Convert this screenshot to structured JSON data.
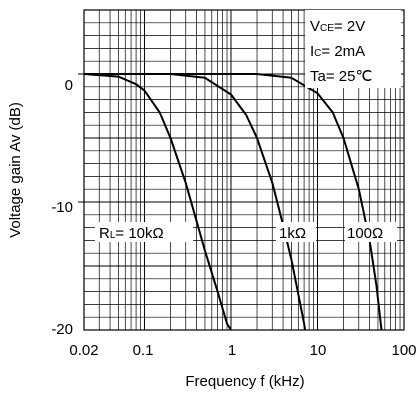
{
  "chart_data": {
    "type": "line",
    "xlabel": "Frequency f (kHz)",
    "ylabel": "Voltage gain Av (dB)",
    "x_scale": "log",
    "xlim": [
      0.02,
      100
    ],
    "ylim": [
      -20,
      5
    ],
    "x_ticks": [
      "0.02",
      "0.1",
      "1",
      "10",
      "100"
    ],
    "y_ticks": [
      "0",
      "-10",
      "-20"
    ],
    "grid": true,
    "series": [
      {
        "name": "RL= 10kΩ",
        "points": [
          [
            0.02,
            0
          ],
          [
            0.05,
            -0.2
          ],
          [
            0.08,
            -0.8
          ],
          [
            0.1,
            -1.3
          ],
          [
            0.15,
            -3.0
          ],
          [
            0.2,
            -5.0
          ],
          [
            0.3,
            -8.5
          ],
          [
            0.4,
            -11.5
          ],
          [
            0.5,
            -13.8
          ],
          [
            0.7,
            -17.0
          ],
          [
            0.9,
            -19.5
          ],
          [
            1.0,
            -20
          ]
        ]
      },
      {
        "name": "1kΩ",
        "points": [
          [
            0.02,
            0
          ],
          [
            0.2,
            0
          ],
          [
            0.5,
            -0.3
          ],
          [
            1.0,
            -1.6
          ],
          [
            1.5,
            -3.2
          ],
          [
            2.0,
            -5.0
          ],
          [
            3.0,
            -8.5
          ],
          [
            4.0,
            -11.8
          ],
          [
            5.0,
            -14.5
          ],
          [
            6.0,
            -17.2
          ],
          [
            7.0,
            -19.5
          ],
          [
            7.2,
            -20
          ]
        ]
      },
      {
        "name": "100Ω",
        "points": [
          [
            0.02,
            0
          ],
          [
            2.0,
            0
          ],
          [
            5.0,
            -0.3
          ],
          [
            10.0,
            -1.5
          ],
          [
            15.0,
            -3.0
          ],
          [
            20.0,
            -5.0
          ],
          [
            30.0,
            -9.0
          ],
          [
            40.0,
            -13.0
          ],
          [
            48.0,
            -16.5
          ],
          [
            55.0,
            -20
          ]
        ]
      }
    ],
    "annotations": {
      "conditions": [
        "VCE= 2V",
        "IC= 2mA",
        "Ta= 25℃"
      ]
    }
  }
}
